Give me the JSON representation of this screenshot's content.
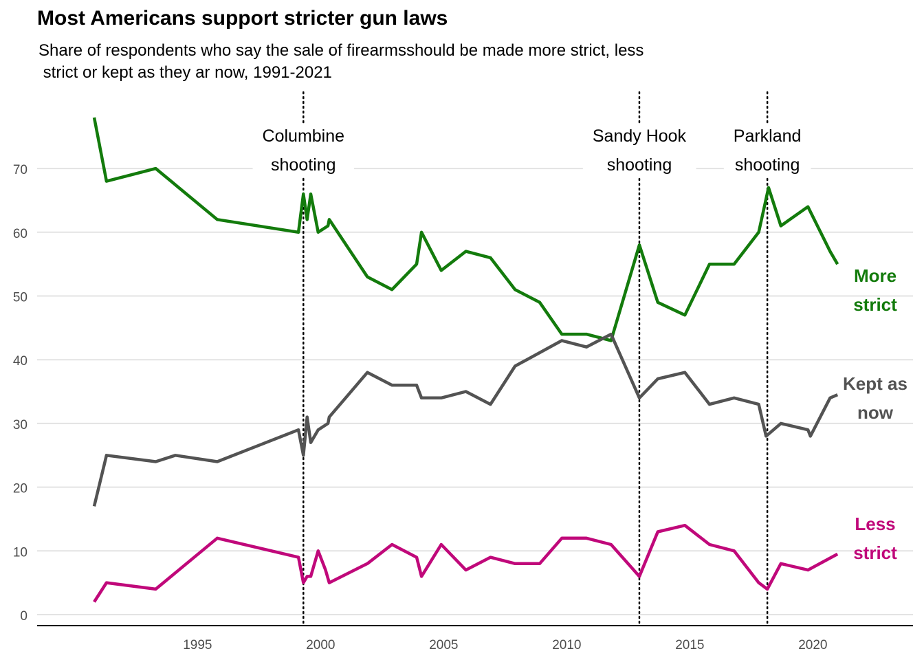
{
  "chart_data": {
    "type": "line",
    "title": "Most Americans support stricter gun laws",
    "subtitle_lines": [
      "Share of respondents who say the sale of firearmsshould be made more strict, less",
      " strict or kept as they ar now, 1991-2021"
    ],
    "xlabel": "",
    "ylabel": "",
    "xlim": [
      1990.0,
      2024.0
    ],
    "ylim": [
      0,
      80
    ],
    "x_ticks": [
      1995,
      2000,
      2005,
      2010,
      2015,
      2020
    ],
    "y_ticks": [
      0,
      10,
      20,
      30,
      40,
      50,
      60,
      70
    ],
    "grid": "horizontal",
    "legend": "direct-labels-right",
    "events": [
      {
        "year": 1999.3,
        "label_lines": [
          "Columbine",
          "shooting"
        ]
      },
      {
        "year": 2012.95,
        "label_lines": [
          "Sandy Hook",
          "shooting"
        ]
      },
      {
        "year": 2018.15,
        "label_lines": [
          "Parkland",
          "shooting"
        ]
      }
    ],
    "series": [
      {
        "name": "More strict",
        "label_lines": [
          "More",
          "strict"
        ],
        "color": "#137b0c",
        "points": [
          [
            1990.8,
            78
          ],
          [
            1991.3,
            68
          ],
          [
            1993.3,
            70
          ],
          [
            1995.8,
            62
          ],
          [
            1999.1,
            60
          ],
          [
            1999.3,
            66
          ],
          [
            1999.45,
            62
          ],
          [
            1999.6,
            66
          ],
          [
            1999.9,
            60
          ],
          [
            2000.3,
            61
          ],
          [
            2000.35,
            62
          ],
          [
            2001.9,
            53
          ],
          [
            2002.9,
            51
          ],
          [
            2003.9,
            55
          ],
          [
            2004.1,
            60
          ],
          [
            2004.9,
            54
          ],
          [
            2005.9,
            57
          ],
          [
            2006.9,
            56
          ],
          [
            2007.9,
            51
          ],
          [
            2008.9,
            49
          ],
          [
            2009.8,
            44
          ],
          [
            2010.8,
            44
          ],
          [
            2011.8,
            43
          ],
          [
            2012.95,
            58
          ],
          [
            2013.7,
            49
          ],
          [
            2014.8,
            47
          ],
          [
            2015.8,
            55
          ],
          [
            2016.8,
            55
          ],
          [
            2017.8,
            60
          ],
          [
            2018.2,
            67
          ],
          [
            2018.7,
            61
          ],
          [
            2019.8,
            64
          ],
          [
            2020.7,
            57
          ],
          [
            2021.0,
            55
          ]
        ]
      },
      {
        "name": "Kept as now",
        "label_lines": [
          "Kept as",
          "now"
        ],
        "color": "#535353",
        "points": [
          [
            1990.8,
            17
          ],
          [
            1991.3,
            25
          ],
          [
            1993.3,
            24
          ],
          [
            1994.1,
            25
          ],
          [
            1995.8,
            24
          ],
          [
            1999.1,
            29
          ],
          [
            1999.3,
            25
          ],
          [
            1999.45,
            31
          ],
          [
            1999.6,
            27
          ],
          [
            1999.9,
            29
          ],
          [
            2000.3,
            30
          ],
          [
            2000.35,
            31
          ],
          [
            2001.9,
            38
          ],
          [
            2002.9,
            36
          ],
          [
            2003.9,
            36
          ],
          [
            2004.1,
            34
          ],
          [
            2004.9,
            34
          ],
          [
            2005.9,
            35
          ],
          [
            2006.9,
            33
          ],
          [
            2007.9,
            39
          ],
          [
            2009.8,
            43
          ],
          [
            2010.8,
            42
          ],
          [
            2011.8,
            44
          ],
          [
            2012.95,
            34
          ],
          [
            2013.7,
            37
          ],
          [
            2014.8,
            38
          ],
          [
            2015.8,
            33
          ],
          [
            2016.8,
            34
          ],
          [
            2017.8,
            33
          ],
          [
            2018.1,
            28
          ],
          [
            2018.7,
            30
          ],
          [
            2019.8,
            29
          ],
          [
            2019.9,
            28
          ],
          [
            2020.7,
            34
          ],
          [
            2021.0,
            34.5
          ]
        ]
      },
      {
        "name": "Less strict",
        "label_lines": [
          "Less",
          "strict"
        ],
        "color": "#c0087a",
        "points": [
          [
            1990.8,
            2
          ],
          [
            1991.3,
            5
          ],
          [
            1993.3,
            4
          ],
          [
            1995.8,
            12
          ],
          [
            1999.1,
            9
          ],
          [
            1999.3,
            5
          ],
          [
            1999.45,
            6
          ],
          [
            1999.6,
            6
          ],
          [
            1999.9,
            10
          ],
          [
            2000.2,
            7
          ],
          [
            2000.35,
            5
          ],
          [
            2001.9,
            8
          ],
          [
            2002.9,
            11
          ],
          [
            2003.9,
            9
          ],
          [
            2004.1,
            6
          ],
          [
            2004.9,
            11
          ],
          [
            2005.9,
            7
          ],
          [
            2006.9,
            9
          ],
          [
            2007.9,
            8
          ],
          [
            2008.9,
            8
          ],
          [
            2009.8,
            12
          ],
          [
            2010.8,
            12
          ],
          [
            2011.8,
            11
          ],
          [
            2012.95,
            6
          ],
          [
            2013.7,
            13
          ],
          [
            2014.8,
            14
          ],
          [
            2015.8,
            11
          ],
          [
            2016.8,
            10
          ],
          [
            2017.8,
            5
          ],
          [
            2018.15,
            4
          ],
          [
            2018.7,
            8
          ],
          [
            2019.8,
            7
          ],
          [
            2021.0,
            9.5
          ]
        ]
      }
    ]
  }
}
